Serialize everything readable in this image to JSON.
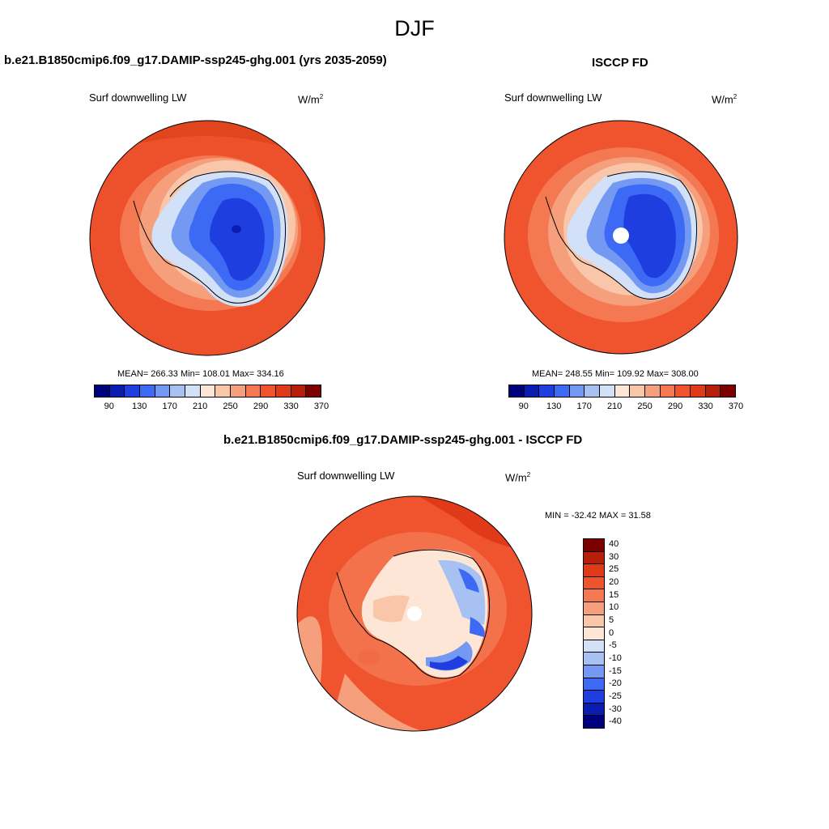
{
  "figure": {
    "season": "DJF"
  },
  "panels": [
    {
      "title": "b.e21.B1850cmip6.f09_g17.DAMIP-ssp245-ghg.001 (yrs 2035-2059)",
      "variable": "Surf downwelling LW",
      "units_base": "W/m",
      "units_exp": "2",
      "stats": "MEAN= 266.33  Min= 108.01  Max= 334.16",
      "colorbar_labels": [
        "90",
        "130",
        "170",
        "210",
        "250",
        "290",
        "330",
        "370"
      ]
    },
    {
      "title": "ISCCP FD",
      "variable": "Surf downwelling LW",
      "units_base": "W/m",
      "units_exp": "2",
      "stats": "MEAN= 248.55  Min= 109.92  Max= 308.00",
      "colorbar_labels": [
        "90",
        "130",
        "170",
        "210",
        "250",
        "290",
        "330",
        "370"
      ]
    },
    {
      "title": "b.e21.B1850cmip6.f09_g17.DAMIP-ssp245-ghg.001 - ISCCP FD",
      "variable": "Surf downwelling LW",
      "units_base": "W/m",
      "units_exp": "2",
      "stats": "MIN = -32.42 MAX =  31.58",
      "colorbar_labels": [
        "40",
        "30",
        "25",
        "20",
        "15",
        "10",
        "5",
        "0",
        "-5",
        "-10",
        "-15",
        "-20",
        "-25",
        "-30",
        "-40"
      ]
    }
  ],
  "colors": {
    "abs_scale": [
      "#00007f",
      "#0a1db0",
      "#1f3ee0",
      "#3d6af5",
      "#7399f2",
      "#a7c1f2",
      "#d2e1f7",
      "#fde6d6",
      "#f9c6aa",
      "#f59f7d",
      "#f47852",
      "#f0542f",
      "#e03a18",
      "#b81f0a",
      "#7d0000"
    ],
    "diff_scale": [
      "#7d0000",
      "#b81f0a",
      "#e03a18",
      "#f0542f",
      "#f47852",
      "#f59f7d",
      "#f9c6aa",
      "#fde6d6",
      "#d2e1f7",
      "#a7c1f2",
      "#7399f2",
      "#3d6af5",
      "#1f3ee0",
      "#0a1db0",
      "#00007f"
    ]
  }
}
